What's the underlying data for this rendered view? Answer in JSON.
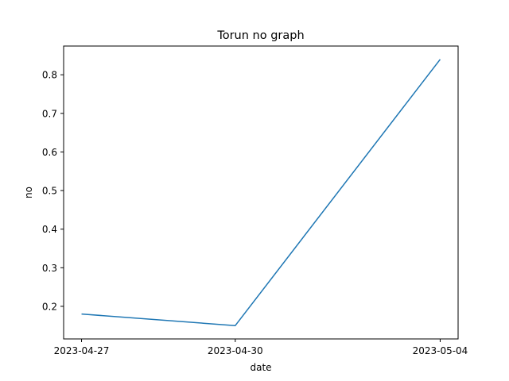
{
  "chart_data": {
    "type": "line",
    "title": "Torun no graph",
    "xlabel": "date",
    "ylabel": "no",
    "x": [
      "2023-04-27",
      "2023-04-30",
      "2023-05-04"
    ],
    "series": [
      {
        "values": [
          0.18,
          0.15,
          0.84
        ],
        "color": "#1f77b4"
      }
    ],
    "xticks": [
      "2023-04-27",
      "2023-04-30",
      "2023-05-04"
    ],
    "yticks": [
      "0.2",
      "0.3",
      "0.4",
      "0.5",
      "0.6",
      "0.7",
      "0.8"
    ],
    "ytick_values": [
      0.2,
      0.3,
      0.4,
      0.5,
      0.6,
      0.7,
      0.8
    ],
    "ylim": [
      0.1155,
      0.8745
    ],
    "grid": false,
    "legend": false
  }
}
